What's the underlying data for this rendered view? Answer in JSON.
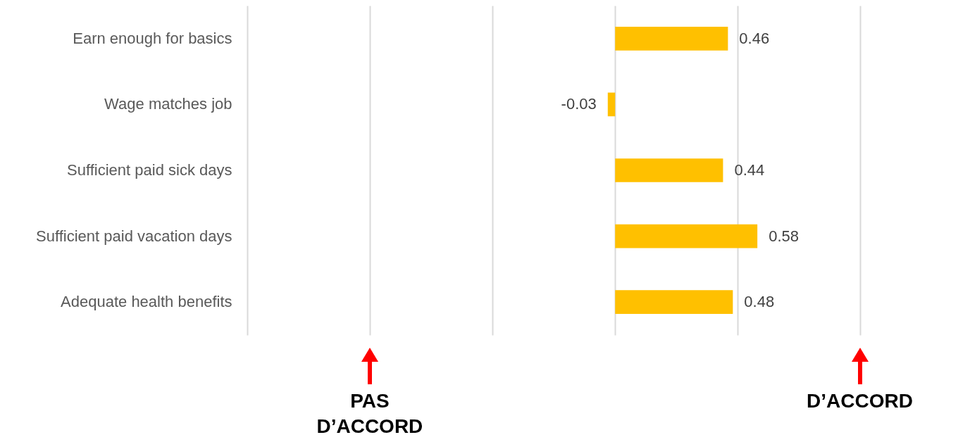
{
  "chart_data": {
    "type": "bar",
    "orientation": "horizontal",
    "categories": [
      "Earn enough for basics",
      "Wage matches job",
      "Sufficient paid sick days",
      "Sufficient paid vacation days",
      "Adequate health benefits"
    ],
    "values": [
      0.46,
      -0.03,
      0.44,
      0.58,
      0.48
    ],
    "color": "#ffc000",
    "data_labels": true,
    "xlim": [
      -1.5,
      1.2
    ],
    "xticks": [
      {
        "value": -1.5,
        "label": null
      },
      {
        "value": -1,
        "label": null
      },
      {
        "value": -0.5,
        "label": null
      },
      {
        "value": 0,
        "label": null
      },
      {
        "value": 0.5,
        "label": null
      },
      {
        "value": 1,
        "label": null
      }
    ],
    "tick_labels": "y",
    "grid": "x",
    "annotations": [
      "PAS D’ACCORD",
      "D’ACCORD"
    ]
  }
}
